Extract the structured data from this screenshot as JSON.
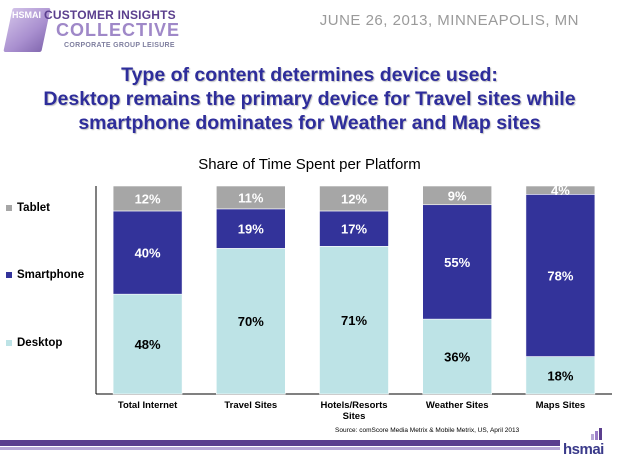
{
  "header": {
    "logo": {
      "line1": "CUSTOMER INSIGHTS",
      "line2": "COLLECTIVE",
      "line3": "CORPORATE GROUP LEISURE",
      "mark_text": "HSMAI"
    },
    "dateline": "JUNE 26, 2013, MINNEAPOLIS, MN"
  },
  "headline": [
    "Type of content determines device used:",
    "Desktop remains the primary device for Travel sites while",
    "smartphone dominates for Weather and Map sites"
  ],
  "chart_data": {
    "type": "bar",
    "stacked": true,
    "title": "Share of Time Spent per Platform",
    "categories": [
      "Total Internet",
      "Travel Sites",
      "Hotels/Resorts Sites",
      "Weather Sites",
      "Maps Sites"
    ],
    "category_lines": [
      [
        "Total Internet"
      ],
      [
        "Travel Sites"
      ],
      [
        "Hotels/Resorts",
        "Sites"
      ],
      [
        "Weather Sites"
      ],
      [
        "Maps Sites"
      ]
    ],
    "series": [
      {
        "name": "Desktop",
        "color": "#bde3e6",
        "values": [
          48,
          70,
          71,
          36,
          18
        ]
      },
      {
        "name": "Smartphone",
        "color": "#33339a",
        "values": [
          40,
          19,
          17,
          55,
          78
        ]
      },
      {
        "name": "Tablet",
        "color": "#a6a6a6",
        "values": [
          12,
          11,
          12,
          9,
          4
        ]
      }
    ],
    "value_suffix": "%",
    "ylim": [
      0,
      100
    ],
    "legend_placement": "left",
    "grid": false
  },
  "source": "Source: comScore Media Metrix & Mobile Metrix, US, April 2013",
  "footer": {
    "logo_text": "hsmai"
  }
}
